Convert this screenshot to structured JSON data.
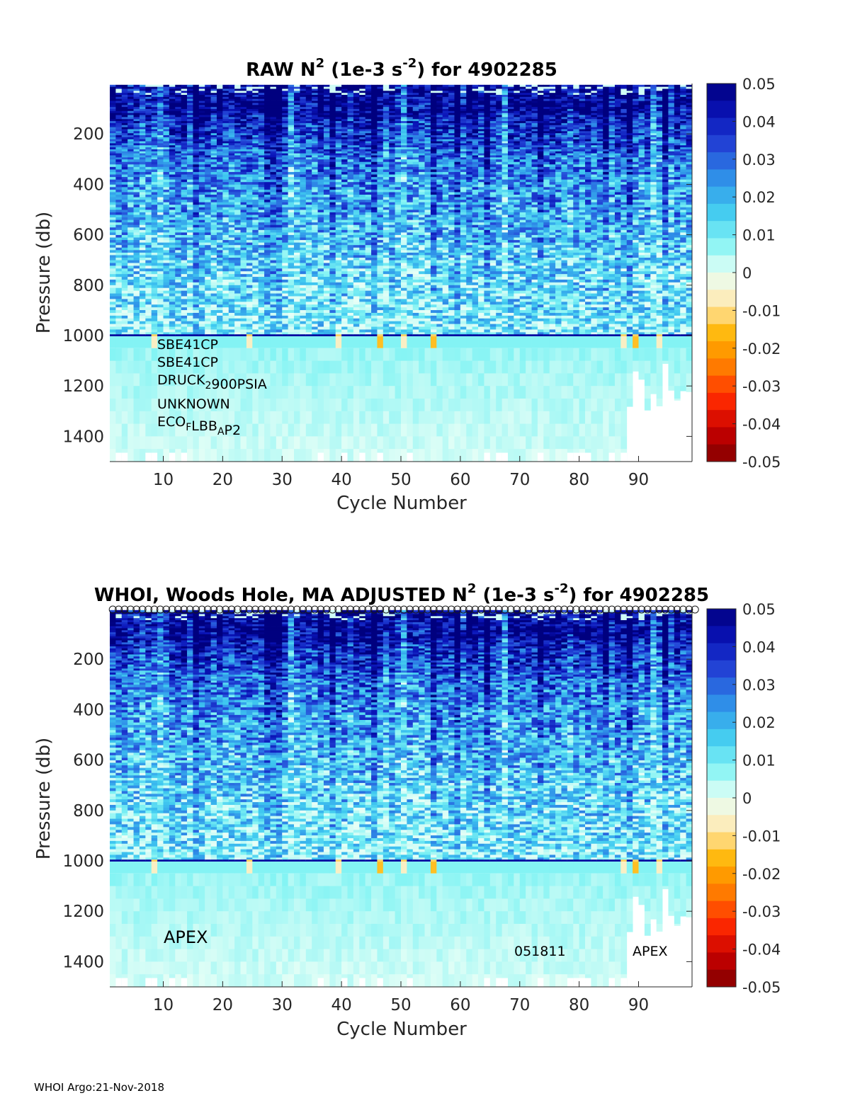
{
  "footer": "WHOI Argo:21-Nov-2018",
  "colorbar_colors": [
    "#800000",
    "#c80000",
    "#ff2a00",
    "#ff7a00",
    "#ffb400",
    "#ffe9b0",
    "#e8fff6",
    "#7ff3f4",
    "#3fc8f0",
    "#2f8ee8",
    "#2448d8",
    "#0a14b8",
    "#00007f"
  ],
  "chart_data": [
    {
      "type": "heatmap",
      "title": "RAW N",
      "title_sup1": "2",
      "title_mid": " (1e-3 s",
      "title_sup2": "-2",
      "title_end": ") for 4902285",
      "xlabel": "Cycle Number",
      "ylabel": "Pressure (db)",
      "xlim": [
        1,
        99
      ],
      "ylim": [
        1500,
        0
      ],
      "xticks": [
        "10",
        "20",
        "30",
        "40",
        "50",
        "60",
        "70",
        "80",
        "90"
      ],
      "yticks": [
        "200",
        "400",
        "600",
        "800",
        "1000",
        "1200",
        "1400"
      ],
      "colorbar": {
        "clim": [
          -0.05,
          0.05
        ],
        "ticks": [
          "0.05",
          "0.04",
          "0.03",
          "0.02",
          "0.01",
          "0",
          "-0.01",
          "-0.02",
          "-0.03",
          "-0.04",
          "-0.05"
        ]
      },
      "negative_cycles_at_1000db": [
        8,
        24,
        39,
        46,
        50,
        55,
        87,
        89,
        93
      ],
      "annotations": [
        {
          "parts": [
            {
              "t": "SBE41CP"
            }
          ]
        },
        {
          "parts": [
            {
              "t": "SBE41CP"
            }
          ]
        },
        {
          "parts": [
            {
              "t": "DRUCK"
            },
            {
              "t": "2",
              "sub": true
            },
            {
              "t": "900PSIA"
            }
          ]
        },
        {
          "parts": [
            {
              "t": "UNKNOWN"
            }
          ]
        },
        {
          "parts": [
            {
              "t": "ECO"
            },
            {
              "t": "F",
              "sub": true
            },
            {
              "t": "LBB"
            },
            {
              "t": "A",
              "sub": true
            },
            {
              "t": "P2"
            }
          ]
        }
      ]
    },
    {
      "type": "heatmap",
      "title": "WHOI, Woods Hole, MA  ADJUSTED N",
      "title_sup1": "2",
      "title_mid": " (1e-3 s",
      "title_sup2": "-2",
      "title_end": ") for 4902285",
      "xlabel": "Cycle Number",
      "ylabel": "Pressure (db)",
      "xlim": [
        1,
        99
      ],
      "ylim": [
        1500,
        0
      ],
      "xticks": [
        "10",
        "20",
        "30",
        "40",
        "50",
        "60",
        "70",
        "80",
        "90"
      ],
      "yticks": [
        "200",
        "400",
        "600",
        "800",
        "1000",
        "1200",
        "1400"
      ],
      "colorbar": {
        "clim": [
          -0.05,
          0.05
        ],
        "ticks": [
          "0.05",
          "0.04",
          "0.03",
          "0.02",
          "0.01",
          "0",
          "-0.01",
          "-0.02",
          "-0.03",
          "-0.04",
          "-0.05"
        ]
      },
      "surface_markers": "open circles at each cycle",
      "negative_cycles_at_1000db": [
        8,
        24,
        39,
        46,
        50,
        55,
        87,
        89,
        93
      ],
      "annotations": [
        {
          "parts": [
            {
              "t": "APEX"
            }
          ]
        },
        {
          "parts": [
            {
              "t": "051811"
            }
          ]
        },
        {
          "parts": [
            {
              "t": "APEX"
            }
          ]
        }
      ]
    }
  ]
}
